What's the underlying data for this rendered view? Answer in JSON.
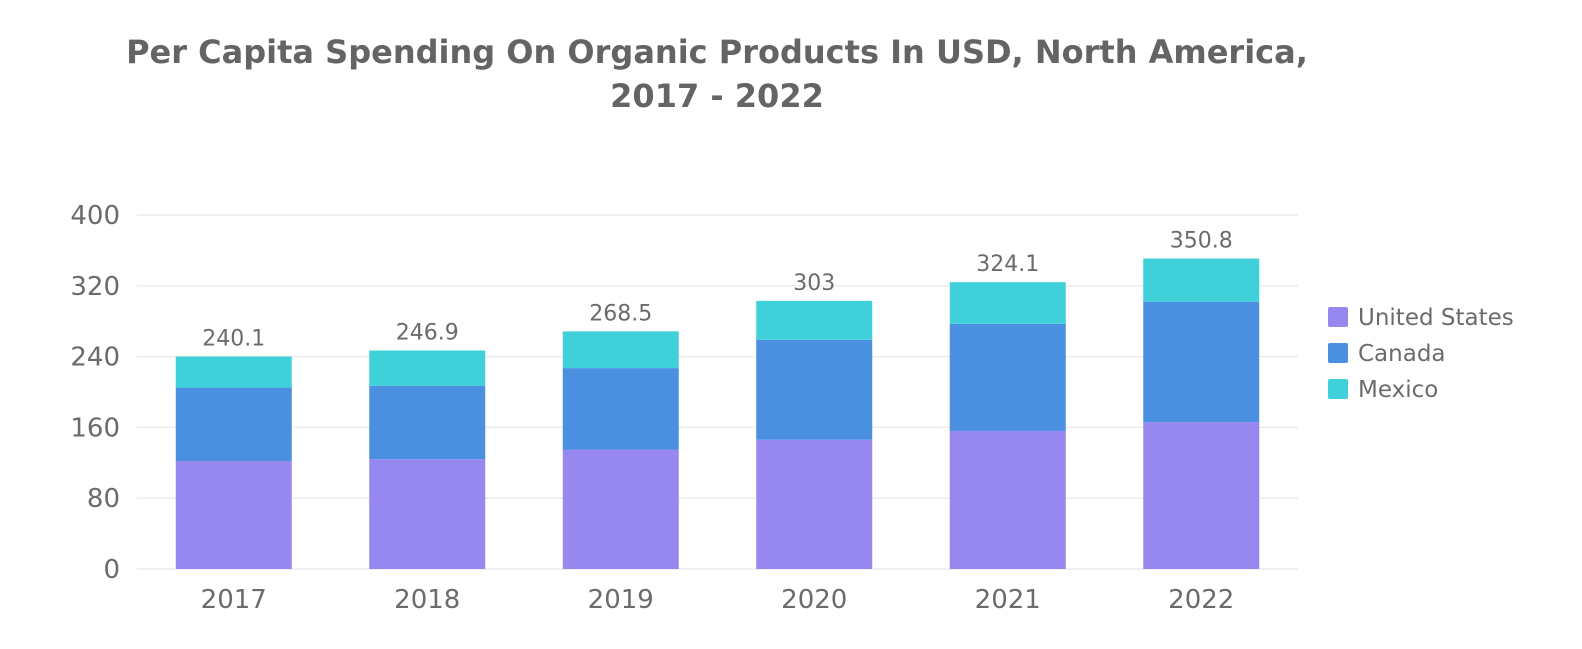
{
  "chart_data": {
    "type": "bar",
    "stacked": true,
    "title_lines": [
      "Per Capita Spending On Organic Products In USD, North America,",
      "2017 - 2022"
    ],
    "categories": [
      "2017",
      "2018",
      "2019",
      "2020",
      "2021",
      "2022"
    ],
    "series": [
      {
        "name": "United States",
        "color": "#9788f0",
        "values": [
          122,
          124,
          135,
          146,
          156,
          166
        ]
      },
      {
        "name": "Canada",
        "color": "#4a8fe0",
        "values": [
          83,
          83,
          92,
          113,
          121,
          136
        ]
      },
      {
        "name": "Mexico",
        "color": "#40d0da",
        "values": [
          35.1,
          39.9,
          41.5,
          44,
          47.1,
          48.8
        ]
      }
    ],
    "totals": [
      "240.1",
      "246.9",
      "268.5",
      "303",
      "324.1",
      "350.8"
    ],
    "ylim": [
      0,
      400
    ],
    "yticks": [
      "0",
      "80",
      "160",
      "240",
      "320",
      "400"
    ],
    "grid": true,
    "legend_position": "right"
  }
}
